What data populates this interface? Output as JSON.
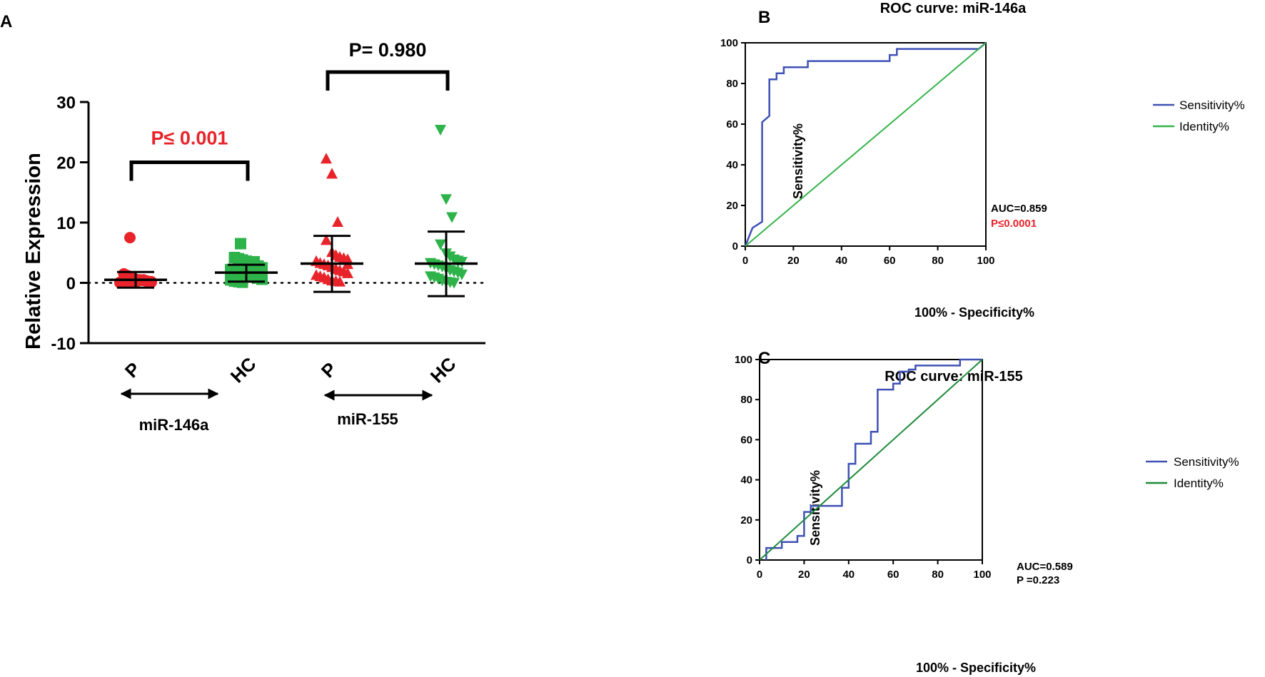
{
  "colors": {
    "red": "#e8232a",
    "green": "#2db34a",
    "roc_blue": "#3f51b5",
    "identity_b": "#35b34a",
    "identity_c": "#1f8a3a",
    "black": "#000000",
    "sig_red": "#e8232a"
  },
  "chart_data": [
    {
      "panel": "A",
      "type": "scatter",
      "ylabel": "Relative Expression",
      "ylim": [
        -10,
        30
      ],
      "yticks": [
        "30",
        "20",
        "10",
        "0",
        "-10"
      ],
      "ytick_values": [
        30,
        20,
        10,
        0,
        -10
      ],
      "categories": [
        "P",
        "HC",
        "P",
        "HC"
      ],
      "groups": [
        {
          "label": "miR-146a",
          "categories": [
            0,
            1
          ]
        },
        {
          "label": "miR-155",
          "categories": [
            2,
            3
          ]
        }
      ],
      "comparisons": [
        {
          "label": "P≤ 0.001",
          "from": 0,
          "to": 1,
          "level": 20,
          "color": "#e8232a"
        },
        {
          "label": "P= 0.980",
          "from": 2,
          "to": 3,
          "level": 35,
          "color": "#000000"
        }
      ],
      "series": [
        {
          "name": "miR-146a P",
          "category": 0,
          "color": "#e8232a",
          "marker": "circle",
          "values": [
            7.5,
            1.5,
            1.2,
            0.8,
            0.6,
            0.5,
            0.4,
            0.3,
            0.2,
            0.1,
            0.0,
            0.3,
            0.2,
            0.1,
            0.4,
            0.5,
            0.2,
            0.1,
            0.0,
            0.3,
            0.6,
            0.8,
            0.2,
            0.4
          ],
          "mean": 0.5,
          "sd_low": -0.8,
          "sd_high": 1.8
        },
        {
          "name": "miR-146a HC",
          "category": 1,
          "color": "#2db34a",
          "marker": "square",
          "values": [
            6.5,
            4.2,
            4.0,
            3.8,
            3.6,
            3.2,
            3.0,
            2.8,
            2.5,
            2.2,
            2.0,
            1.8,
            1.6,
            1.5,
            1.2,
            1.0,
            0.8,
            0.6,
            0.5,
            0.3,
            0.2,
            0.1,
            1.4,
            2.6,
            3.5
          ],
          "mean": 1.7,
          "sd_low": 0.2,
          "sd_high": 3.0
        },
        {
          "name": "miR-155 P",
          "category": 2,
          "color": "#e8232a",
          "marker": "triangle-up",
          "values": [
            20.5,
            18.0,
            10.0,
            7.0,
            5.0,
            4.5,
            4.2,
            4.0,
            3.8,
            3.5,
            3.2,
            3.0,
            2.8,
            2.5,
            2.2,
            2.0,
            1.8,
            1.5,
            1.2,
            1.0,
            0.8,
            0.5,
            0.3,
            0.2,
            0.1,
            4.0,
            3.0
          ],
          "mean": 3.2,
          "sd_low": -1.5,
          "sd_high": 7.8
        },
        {
          "name": "miR-155 HC",
          "category": 3,
          "color": "#2db34a",
          "marker": "triangle-down",
          "values": [
            25.5,
            14.0,
            11.0,
            6.5,
            5.0,
            4.5,
            4.0,
            3.8,
            3.6,
            3.4,
            3.2,
            3.0,
            2.8,
            2.5,
            2.2,
            2.0,
            1.8,
            1.5,
            1.2,
            1.0,
            0.8,
            0.5,
            0.3,
            0.2,
            0.1,
            3.6
          ],
          "mean": 3.2,
          "sd_low": -2.2,
          "sd_high": 8.5
        }
      ]
    },
    {
      "panel": "B",
      "type": "line",
      "title": "ROC curve: miR-146a",
      "xlabel": "100% - Specificity%",
      "ylabel": "Sensitivity%",
      "xlim": [
        0,
        100
      ],
      "ylim": [
        0,
        100
      ],
      "xticks": [
        "0",
        "20",
        "40",
        "60",
        "80",
        "100"
      ],
      "yticks": [
        "0",
        "20",
        "40",
        "60",
        "80",
        "100"
      ],
      "series": [
        {
          "name": "Sensitivity%",
          "color": "#3f51b5",
          "x": [
            0,
            3,
            7,
            7,
            10,
            10,
            13,
            13,
            16,
            16,
            26,
            26,
            60,
            60,
            63,
            63,
            97,
            97,
            100
          ],
          "y": [
            0,
            9,
            12,
            61,
            64,
            82,
            82,
            85,
            85,
            88,
            88,
            91,
            91,
            94,
            94,
            97,
            97,
            97,
            100
          ]
        },
        {
          "name": "Identity%",
          "color": "#35b34a",
          "x": [
            0,
            100
          ],
          "y": [
            0,
            100
          ]
        }
      ],
      "annotations": [
        {
          "text": "AUC=0.859",
          "color": "#000000"
        },
        {
          "text": "P≤0.0001",
          "color": "#e8232a"
        }
      ],
      "legend": [
        "Sensitivity%",
        "Identity%"
      ]
    },
    {
      "panel": "C",
      "type": "line",
      "title": "ROC curve: miR-155",
      "xlabel": "100% - Specificity%",
      "ylabel": "Sensitivity%",
      "xlim": [
        0,
        100
      ],
      "ylim": [
        0,
        100
      ],
      "xticks": [
        "0",
        "20",
        "40",
        "60",
        "80",
        "100"
      ],
      "yticks": [
        "0",
        "20",
        "40",
        "60",
        "80",
        "100"
      ],
      "series": [
        {
          "name": "Sensitivity%",
          "color": "#3f51b5",
          "x": [
            3,
            3,
            10,
            10,
            17,
            17,
            20,
            20,
            23,
            23,
            37,
            37,
            40,
            40,
            43,
            43,
            50,
            50,
            53,
            53,
            60,
            60,
            63,
            63,
            67,
            67,
            70,
            70,
            90,
            90,
            100
          ],
          "y": [
            0,
            6,
            6,
            9,
            9,
            12,
            12,
            24,
            24,
            27,
            27,
            36,
            36,
            48,
            48,
            58,
            58,
            64,
            64,
            85,
            85,
            88,
            88,
            94,
            94,
            95,
            95,
            97,
            97,
            100,
            100
          ]
        },
        {
          "name": "Identity%",
          "color": "#1f8a3a",
          "x": [
            0,
            100
          ],
          "y": [
            0,
            100
          ]
        }
      ],
      "annotations": [
        {
          "text": "AUC=0.589",
          "color": "#000000"
        },
        {
          "text": "P =0.223",
          "color": "#000000"
        }
      ],
      "legend": [
        "Sensitivity%",
        "Identity%"
      ]
    }
  ],
  "panel_labels": [
    "A",
    "B",
    "C"
  ]
}
